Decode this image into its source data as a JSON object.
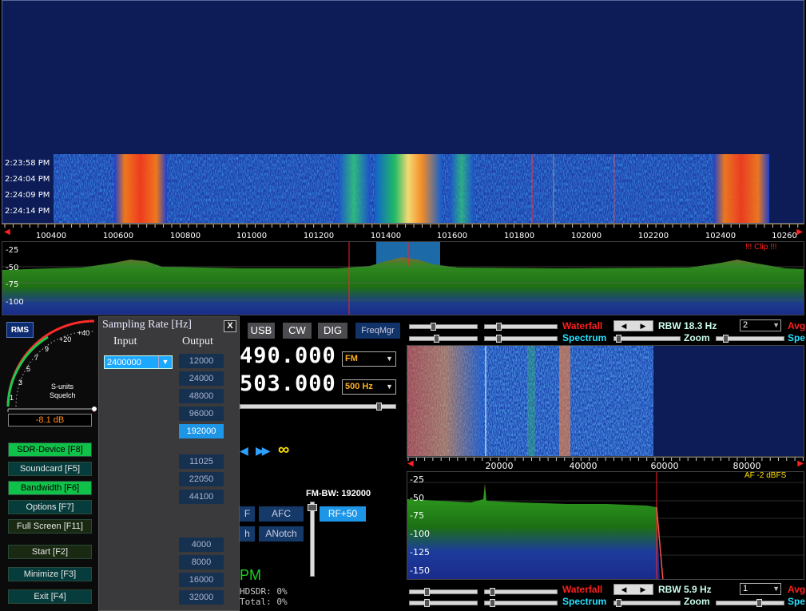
{
  "rf_waterfall": {
    "times": [
      "2:23:58 PM",
      "2:24:04 PM",
      "2:24:09 PM",
      "2:24:14 PM"
    ]
  },
  "freq_scale": {
    "ticks": [
      "100400",
      "100600",
      "100800",
      "101000",
      "101200",
      "101400",
      "101600",
      "101800",
      "102000",
      "102200",
      "102400",
      "10260"
    ]
  },
  "rf_spectrum": {
    "db_ticks": [
      "-25",
      "-50",
      "-75",
      "-100"
    ],
    "clip_label": "!!! Clip !!!"
  },
  "left_panel": {
    "rms_label": "RMS",
    "meter": {
      "scale_labels": [
        "1",
        "3",
        "5",
        "7",
        "9",
        "+20",
        "+40"
      ],
      "s_units_label": "S-units",
      "squelch_label": "Squelch",
      "readout": "-8.1 dB"
    },
    "buttons": [
      {
        "label": "SDR-Device [F8]",
        "style": "green"
      },
      {
        "label": "Soundcard  [F5]",
        "style": "teal"
      },
      {
        "label": "Bandwidth  [F6]",
        "style": "green"
      },
      {
        "label": "Options    [F7]",
        "style": "teal"
      },
      {
        "label": "Full Screen [F11]",
        "style": "olive"
      },
      {
        "label": "Start       [F2]",
        "style": "olive"
      },
      {
        "label": "Minimize  [F3]",
        "style": "teal"
      },
      {
        "label": "Exit       [F4]",
        "style": "teal"
      }
    ]
  },
  "sampling_popup": {
    "title": "Sampling Rate [Hz]",
    "close_label": "X",
    "input_header": "Input",
    "output_header": "Output",
    "input_value": "2400000",
    "outputs": [
      "12000",
      "24000",
      "48000",
      "96000",
      "192000",
      "11025",
      "22050",
      "44100",
      "4000",
      "8000",
      "16000",
      "32000"
    ],
    "selected_output": "192000"
  },
  "mid_panel": {
    "mode_tabs": [
      "USB",
      "CW",
      "DIG"
    ],
    "freqmgr_label": "FreqMgr",
    "lo_freq": "490.000",
    "tune_freq": "503.000",
    "mode_select": "FM",
    "step_select": "500 Hz",
    "afc_label": "AFC",
    "anotch_label": "ANotch",
    "partial_btn1": "F",
    "partial_btn2": "h",
    "fm_bw_label": "FM-BW: 192000",
    "rf50_label": "RF+50",
    "clock_partial": "PM",
    "cpu_hdsdr": "HDSDR:  0%",
    "cpu_total": "Total:  0%",
    "infinity": "∞"
  },
  "right_panel": {
    "waterfall_label": "Waterfall",
    "spectrum_label": "Spectrum",
    "zoom_label": "Zoom",
    "rbw_top": "RBW 18.3 Hz",
    "rbw_bottom": "RBW  5.9 Hz",
    "avg_top": "2",
    "avg_bottom": "1",
    "avg_label": "Avg",
    "spe_label": "Spe",
    "af_scale": [
      "20000",
      "40000",
      "60000",
      "80000"
    ],
    "af_db": [
      "-25",
      "-50",
      "-75",
      "-100",
      "-125",
      "-150"
    ],
    "af_label": "AF  -2 dBFS"
  },
  "colors": {
    "waterfall_bg": "#0d1c57",
    "accent_blue": "#1e96e8",
    "label_red": "#ff1e1e",
    "label_cyan": "#28e0ff",
    "readout_orange": "#ff8a1e"
  }
}
